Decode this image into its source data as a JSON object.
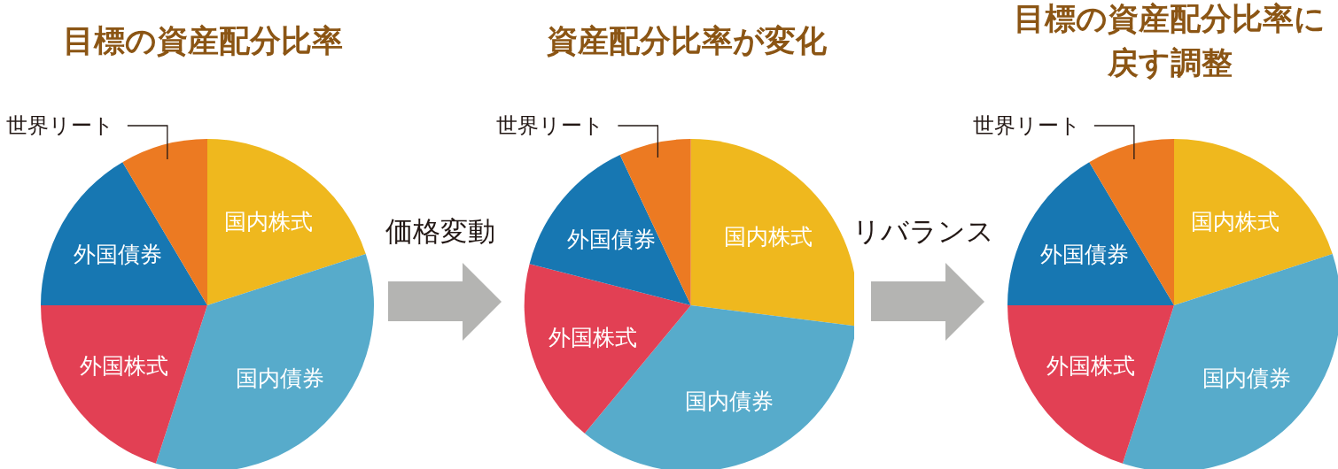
{
  "chart_data": [
    {
      "type": "pie",
      "title": "目標の資産配分比率",
      "categories": [
        "国内株式",
        "国内債券",
        "外国株式",
        "外国債券",
        "世界リート"
      ],
      "values": [
        20,
        35,
        20,
        16.5,
        8.5
      ],
      "colors": [
        "#efb81e",
        "#57abcb",
        "#e24054",
        "#1777b2",
        "#ec7a22"
      ]
    },
    {
      "type": "pie",
      "title": "資産配分比率が変化",
      "categories": [
        "国内株式",
        "国内債券",
        "外国株式",
        "外国債券",
        "世界リート"
      ],
      "values": [
        27,
        34,
        18,
        14,
        7
      ],
      "colors": [
        "#efb81e",
        "#57abcb",
        "#e24054",
        "#1777b2",
        "#ec7a22"
      ],
      "annotations": [
        "価格変動"
      ]
    },
    {
      "type": "pie",
      "title": "目標の資産配分比率に戻す調整",
      "categories": [
        "国内株式",
        "国内債券",
        "外国株式",
        "外国債券",
        "世界リート"
      ],
      "values": [
        20,
        35,
        20,
        16.5,
        8.5
      ],
      "colors": [
        "#efb81e",
        "#57abcb",
        "#e24054",
        "#1777b2",
        "#ec7a22"
      ],
      "annotations": [
        "リバランス"
      ]
    }
  ]
}
